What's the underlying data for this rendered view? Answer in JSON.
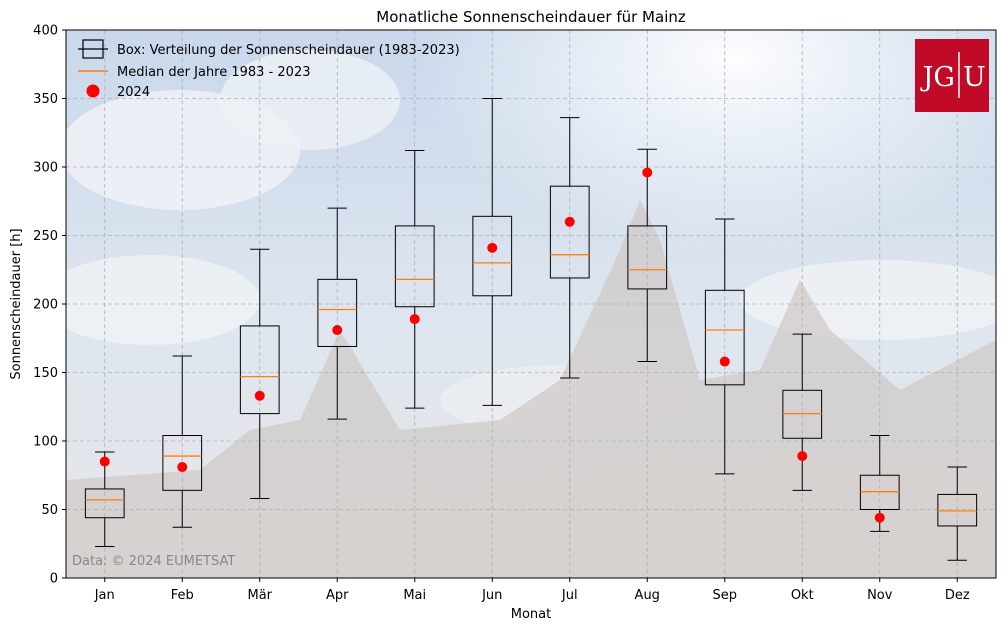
{
  "chart_data": {
    "type": "box",
    "title": "Monatliche Sonnenscheindauer für Mainz",
    "xlabel": "Monat",
    "ylabel": "Sonnenscheindauer [h]",
    "ylim": [
      0,
      400
    ],
    "yticks": [
      0,
      50,
      100,
      150,
      200,
      250,
      300,
      350,
      400
    ],
    "grid": true,
    "legend_position": "top-left",
    "categories": [
      "Jan",
      "Feb",
      "Mär",
      "Apr",
      "Mai",
      "Jun",
      "Jul",
      "Aug",
      "Sep",
      "Okt",
      "Nov",
      "Dez"
    ],
    "series": [
      {
        "name": "Box: Verteilung der Sonnenscheindauer (1983-2023)",
        "boxes": [
          {
            "min": 23,
            "q1": 44,
            "median": 57,
            "q3": 65,
            "max": 92
          },
          {
            "min": 37,
            "q1": 64,
            "median": 89,
            "q3": 104,
            "max": 162
          },
          {
            "min": 58,
            "q1": 120,
            "median": 147,
            "q3": 184,
            "max": 240
          },
          {
            "min": 116,
            "q1": 169,
            "median": 196,
            "q3": 218,
            "max": 270
          },
          {
            "min": 124,
            "q1": 198,
            "median": 218,
            "q3": 257,
            "max": 312
          },
          {
            "min": 126,
            "q1": 206,
            "median": 230,
            "q3": 264,
            "max": 350
          },
          {
            "min": 146,
            "q1": 219,
            "median": 236,
            "q3": 286,
            "max": 336
          },
          {
            "min": 158,
            "q1": 211,
            "median": 225,
            "q3": 257,
            "max": 313
          },
          {
            "min": 76,
            "q1": 141,
            "median": 181,
            "q3": 210,
            "max": 262
          },
          {
            "min": 64,
            "q1": 102,
            "median": 120,
            "q3": 137,
            "max": 178
          },
          {
            "min": 34,
            "q1": 50,
            "median": 63,
            "q3": 75,
            "max": 104
          },
          {
            "min": 13,
            "q1": 38,
            "median": 49,
            "q3": 61,
            "max": 81
          }
        ]
      },
      {
        "name": "Median der Jahre 1983 - 2023",
        "color": "#ff7f0e"
      },
      {
        "name": "2024",
        "color": "#ff0000",
        "values": [
          85,
          81,
          133,
          181,
          189,
          241,
          260,
          296,
          158,
          89,
          44,
          null
        ]
      }
    ],
    "annotation": "Data: © 2024 EUMETSAT",
    "logo": {
      "left": "JG",
      "right": "U",
      "color": "#c10a27"
    }
  }
}
